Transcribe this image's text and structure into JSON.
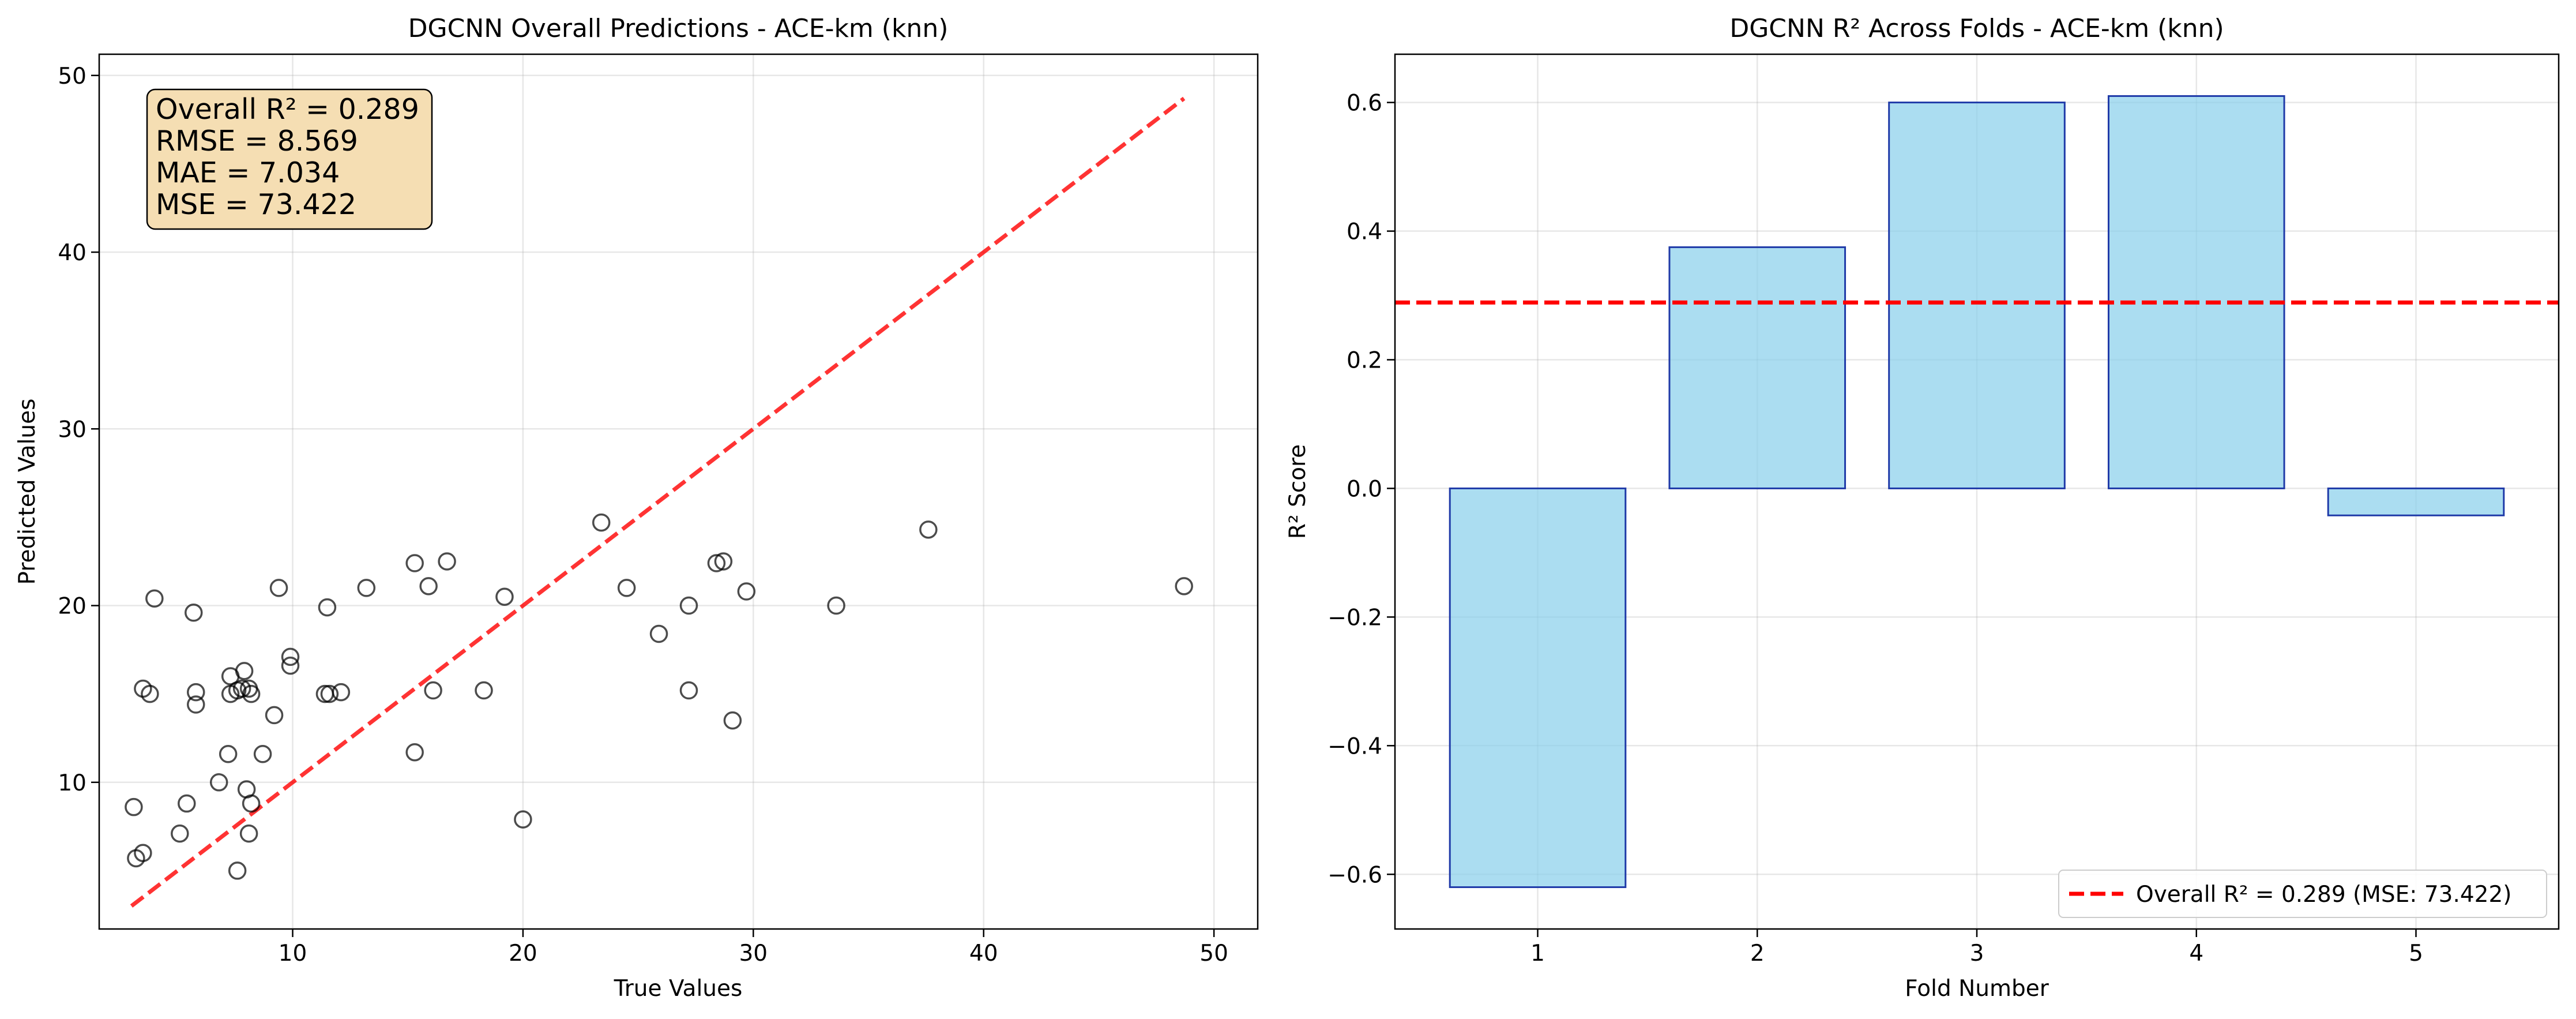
{
  "chart_data": [
    {
      "type": "scatter",
      "title": "DGCNN Overall Predictions - ACE-km (knn)",
      "xlabel": "True Values",
      "ylabel": "Predicted Values",
      "xlim": [
        1.6,
        51.9
      ],
      "ylim": [
        1.7,
        51.2
      ],
      "xticks": [
        10,
        20,
        30,
        40,
        50
      ],
      "yticks": [
        10,
        20,
        30,
        40,
        50
      ],
      "grid": true,
      "points": [
        [
          3.1,
          8.6
        ],
        [
          3.2,
          5.7
        ],
        [
          3.5,
          6.0
        ],
        [
          3.5,
          15.3
        ],
        [
          3.8,
          15.0
        ],
        [
          4.0,
          20.4
        ],
        [
          5.1,
          7.1
        ],
        [
          5.4,
          8.8
        ],
        [
          5.7,
          19.6
        ],
        [
          5.8,
          14.4
        ],
        [
          5.8,
          15.1
        ],
        [
          6.8,
          10.0
        ],
        [
          7.2,
          11.6
        ],
        [
          7.3,
          16.0
        ],
        [
          7.3,
          15.0
        ],
        [
          7.6,
          5.0
        ],
        [
          7.6,
          15.2
        ],
        [
          7.8,
          15.3
        ],
        [
          7.9,
          16.3
        ],
        [
          8.0,
          9.6
        ],
        [
          8.1,
          7.1
        ],
        [
          8.1,
          15.3
        ],
        [
          8.2,
          15.0
        ],
        [
          8.2,
          8.8
        ],
        [
          8.7,
          11.6
        ],
        [
          9.2,
          13.8
        ],
        [
          9.4,
          21.0
        ],
        [
          9.9,
          17.1
        ],
        [
          9.9,
          16.6
        ],
        [
          11.4,
          15.0
        ],
        [
          11.5,
          19.9
        ],
        [
          11.6,
          15.0
        ],
        [
          12.1,
          15.1
        ],
        [
          13.2,
          21.0
        ],
        [
          15.3,
          22.4
        ],
        [
          15.3,
          11.7
        ],
        [
          15.9,
          21.1
        ],
        [
          16.1,
          15.2
        ],
        [
          16.7,
          22.5
        ],
        [
          18.3,
          15.2
        ],
        [
          19.2,
          20.5
        ],
        [
          20.0,
          7.9
        ],
        [
          23.4,
          24.7
        ],
        [
          24.5,
          21.0
        ],
        [
          25.9,
          18.4
        ],
        [
          27.2,
          20.0
        ],
        [
          27.2,
          15.2
        ],
        [
          28.4,
          22.4
        ],
        [
          28.7,
          22.5
        ],
        [
          29.1,
          13.5
        ],
        [
          29.7,
          20.8
        ],
        [
          33.6,
          20.0
        ],
        [
          37.6,
          24.3
        ],
        [
          48.7,
          21.1
        ]
      ],
      "reference_line": {
        "x": [
          3.0,
          48.7
        ],
        "y": [
          3.0,
          48.7
        ],
        "color": "#ff0000",
        "style": "dashed"
      },
      "stats_box": [
        "Overall R² = 0.289",
        "RMSE = 8.569",
        "MAE = 7.034",
        "MSE = 73.422"
      ],
      "stats_box_color": "#f5deb3"
    },
    {
      "type": "bar",
      "title": "DGCNN R² Across Folds - ACE-km (knn)",
      "xlabel": "Fold Number",
      "ylabel": "R² Score",
      "categories": [
        "1",
        "2",
        "3",
        "4",
        "5"
      ],
      "values": [
        -0.62,
        0.375,
        0.6,
        0.61,
        -0.042
      ],
      "ylim": [
        -0.685,
        0.675
      ],
      "yticks": [
        -0.6,
        -0.4,
        -0.2,
        0.0,
        0.2,
        0.4,
        0.6
      ],
      "grid": true,
      "bar_color": "#87ceeb",
      "bar_edge": "#1f3aa8",
      "hline": {
        "y": 0.289,
        "color": "#ff0000",
        "style": "dashed"
      },
      "legend": {
        "placement": "lower right",
        "entries": [
          "Overall R² = 0.289 (MSE: 73.422)"
        ]
      }
    }
  ]
}
